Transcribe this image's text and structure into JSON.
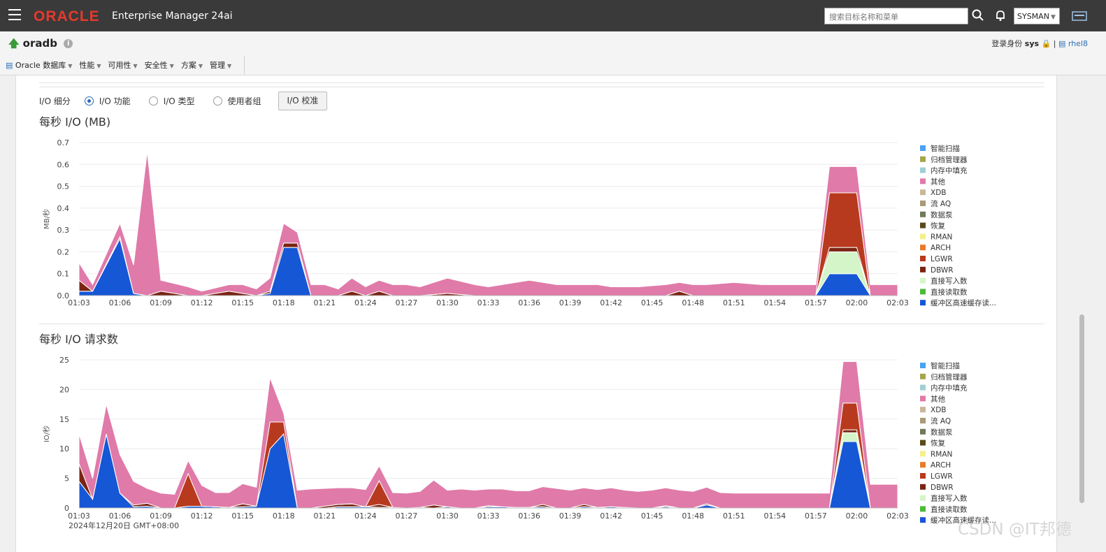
{
  "header": {
    "brand": "ORACLE",
    "product": "Enterprise Manager 24ai",
    "search_placeholder": "搜索目标名称和菜单",
    "user": "SYSMAN"
  },
  "target_bar": {
    "target_name": "oradb",
    "login_label": "登录身份",
    "login_user": "sys",
    "host": "rhel8"
  },
  "menu": [
    "Oracle 数据库",
    "性能",
    "可用性",
    "安全性",
    "方案",
    "管理"
  ],
  "io_breakdown": {
    "label": "I/O 细分",
    "options": [
      "I/O 功能",
      "I/O 类型",
      "使用者组"
    ],
    "selected": "I/O 功能",
    "calibrate_button": "I/O 校准"
  },
  "legend_colors": [
    "#4aa3f0",
    "#a7a54a",
    "#9fcfd6",
    "#e07aa9",
    "#c9b79b",
    "#a89a7a",
    "#6f7a5a",
    "#5a4a1a",
    "#f5f08a",
    "#ea7a2a",
    "#b83a1e",
    "#7a2412",
    "#d4f5c7",
    "#4cbb3a",
    "#1657d6"
  ],
  "watermark": "CSDN @IT邦德",
  "charts": [
    {
      "title": "每秒 I/O (MB)",
      "ylabel": "MB/秒",
      "ylim": [
        0,
        0.7
      ],
      "yticks": [
        "0.0",
        "0.1",
        "0.2",
        "0.3",
        "0.4",
        "0.5",
        "0.6",
        "0.7"
      ],
      "xticks": [
        "01:03",
        "01:06",
        "01:09",
        "01:12",
        "01:15",
        "01:18",
        "01:21",
        "01:24",
        "01:27",
        "01:30",
        "01:33",
        "01:36",
        "01:39",
        "01:42",
        "01:45",
        "01:48",
        "01:51",
        "01:54",
        "01:57",
        "02:00",
        "02:03"
      ],
      "date_label": "",
      "legend": [
        "智能扫描",
        "归档管理器",
        "内存中填充",
        "其他",
        "XDB",
        "流 AQ",
        "数据泵",
        "恢复",
        "RMAN",
        "ARCH",
        "LGWR",
        "DBWR",
        "直接写入数",
        "直接读取数",
        "缓冲区高速缓存读..."
      ]
    },
    {
      "title": "每秒 I/O 请求数",
      "ylabel": "IO/秒",
      "ylim": [
        0,
        25
      ],
      "yticks": [
        "0",
        "5",
        "10",
        "15",
        "20",
        "25"
      ],
      "xticks": [
        "01:03",
        "01:06",
        "01:09",
        "01:12",
        "01:15",
        "01:18",
        "01:21",
        "01:24",
        "01:27",
        "01:30",
        "01:33",
        "01:36",
        "01:39",
        "01:42",
        "01:45",
        "01:48",
        "01:51",
        "01:54",
        "01:57",
        "02:00",
        "02:03"
      ],
      "date_label": "2024年12月20日 GMT+08:00",
      "legend": [
        "智能扫描",
        "归档管理器",
        "内存中填充",
        "其他",
        "XDB",
        "流 AQ",
        "数据泵",
        "恢复",
        "RMAN",
        "ARCH",
        "LGWR",
        "DBWR",
        "直接写入数",
        "直接读取数",
        "缓冲区高速缓存读..."
      ]
    }
  ],
  "chart_data": [
    {
      "type": "area",
      "title": "每秒 I/O (MB)",
      "ylabel": "MB/秒",
      "x_range": [
        "01:03",
        "02:03"
      ],
      "ylim": [
        0,
        0.7
      ],
      "x": [
        63,
        64,
        66,
        67,
        68,
        69,
        71,
        72,
        74,
        75,
        76,
        77,
        78,
        79,
        80,
        81,
        82,
        83,
        84,
        85,
        86,
        87,
        88,
        90,
        92,
        93,
        96,
        98,
        99,
        101,
        102,
        104,
        106,
        107,
        108,
        109,
        111,
        113,
        115,
        117,
        118,
        120,
        121,
        122,
        123
      ],
      "series": [
        {
          "name": "缓冲区高速缓存读...",
          "values": [
            0.02,
            0.02,
            0.26,
            0.01,
            0,
            0,
            0,
            0,
            0,
            0,
            0,
            0.01,
            0.22,
            0.22,
            0,
            0,
            0,
            0,
            0,
            0,
            0,
            0,
            0,
            0,
            0,
            0,
            0,
            0,
            0,
            0,
            0,
            0,
            0,
            0,
            0,
            0,
            0,
            0,
            0,
            0,
            0.1,
            0.1,
            0,
            0,
            0
          ]
        },
        {
          "name": "直接写入数",
          "values": [
            0,
            0,
            0,
            0,
            0,
            0,
            0,
            0,
            0,
            0,
            0,
            0,
            0,
            0,
            0,
            0,
            0,
            0,
            0,
            0,
            0,
            0,
            0,
            0,
            0,
            0,
            0,
            0,
            0,
            0,
            0,
            0,
            0,
            0,
            0,
            0,
            0,
            0,
            0,
            0,
            0.1,
            0.1,
            0,
            0,
            0
          ]
        },
        {
          "name": "DBWR",
          "values": [
            0.05,
            0,
            0.01,
            0,
            0,
            0.02,
            0,
            0,
            0.02,
            0.01,
            0,
            0.01,
            0.02,
            0.02,
            0,
            0,
            0,
            0.02,
            0,
            0.02,
            0,
            0,
            0,
            0.01,
            0,
            0,
            0,
            0,
            0,
            0,
            0,
            0,
            0,
            0.02,
            0,
            0,
            0,
            0,
            0,
            0,
            0.02,
            0.02,
            0,
            0,
            0
          ]
        },
        {
          "name": "LGWR",
          "values": [
            0,
            0,
            0,
            0,
            0,
            0,
            0,
            0,
            0,
            0,
            0,
            0,
            0,
            0,
            0,
            0,
            0,
            0,
            0,
            0,
            0,
            0,
            0,
            0,
            0,
            0,
            0,
            0,
            0,
            0,
            0,
            0,
            0,
            0,
            0,
            0,
            0,
            0,
            0,
            0,
            0.25,
            0.25,
            0,
            0,
            0
          ]
        },
        {
          "name": "其他",
          "values": [
            0.08,
            0.03,
            0.06,
            0.13,
            0.66,
            0.05,
            0.04,
            0.02,
            0.03,
            0.04,
            0.03,
            0.06,
            0.09,
            0.05,
            0.05,
            0.05,
            0.03,
            0.06,
            0.04,
            0.05,
            0.05,
            0.05,
            0.04,
            0.07,
            0.05,
            0.04,
            0.07,
            0.05,
            0.05,
            0.05,
            0.04,
            0.04,
            0.05,
            0.04,
            0.05,
            0.05,
            0.06,
            0.05,
            0.05,
            0.05,
            0.12,
            0.12,
            0.05,
            0.05,
            0.05
          ]
        }
      ]
    },
    {
      "type": "area",
      "title": "每秒 I/O 请求数",
      "ylabel": "IO/秒",
      "x_range": [
        "01:03",
        "02:03"
      ],
      "ylim": [
        0,
        25
      ],
      "x": [
        63,
        64,
        65,
        66,
        67,
        68,
        69,
        70,
        71,
        72,
        73,
        74,
        75,
        76,
        77,
        78,
        79,
        80,
        81,
        82,
        83,
        84,
        85,
        86,
        87,
        88,
        89,
        90,
        91,
        92,
        93,
        94,
        95,
        96,
        97,
        98,
        99,
        100,
        101,
        102,
        103,
        104,
        105,
        106,
        107,
        108,
        109,
        110,
        111,
        112,
        113,
        114,
        115,
        116,
        117,
        118,
        119,
        120,
        121,
        122,
        123
      ],
      "series": [
        {
          "name": "缓冲区高速缓存读...",
          "values": [
            4.5,
            1.5,
            12.5,
            2.5,
            0.2,
            0.3,
            0,
            0,
            0.3,
            0.3,
            0.2,
            0.1,
            0.2,
            0.3,
            10,
            12.5,
            0,
            0,
            0,
            0.2,
            0.2,
            0.2,
            0.1,
            0.1,
            0,
            0.1,
            0,
            0.2,
            0,
            0,
            0.2,
            0.2,
            0.1,
            0.1,
            0.2,
            0,
            0,
            0.2,
            0.1,
            0.2,
            0.1,
            0,
            0,
            0.2,
            0,
            0,
            0.5,
            0,
            0,
            0,
            0,
            0,
            0,
            0,
            0,
            0,
            11.2,
            11.2,
            0,
            0,
            0
          ]
        },
        {
          "name": "直接写入数",
          "values": [
            0,
            0,
            0,
            0,
            0,
            0,
            0,
            0,
            0,
            0,
            0,
            0,
            0,
            0,
            0,
            0,
            0,
            0,
            0,
            0,
            0,
            0,
            0,
            0,
            0,
            0,
            0,
            0,
            0,
            0,
            0,
            0,
            0,
            0,
            0,
            0,
            0,
            0,
            0,
            0,
            0,
            0,
            0,
            0,
            0,
            0,
            0,
            0,
            0,
            0,
            0,
            0,
            0,
            0,
            0,
            0,
            1.5,
            1.5,
            0,
            0,
            0
          ]
        },
        {
          "name": "DBWR",
          "values": [
            3,
            0,
            0,
            0,
            0.3,
            0.5,
            0,
            0,
            0,
            0,
            0,
            0,
            0.5,
            0,
            0,
            0,
            0,
            0,
            0.3,
            0.4,
            0.5,
            0,
            0.5,
            0,
            0,
            0,
            0.5,
            0,
            0,
            0,
            0.2,
            0,
            0,
            0,
            0.4,
            0,
            0,
            0.4,
            0,
            0,
            0,
            0,
            0,
            0.2,
            0,
            0,
            0.2,
            0,
            0,
            0,
            0,
            0,
            0,
            0,
            0,
            0,
            0.5,
            0.5,
            0,
            0,
            0
          ]
        },
        {
          "name": "LGWR",
          "values": [
            0,
            0,
            0,
            0,
            0,
            0,
            0,
            0,
            5.5,
            0,
            0,
            0,
            0,
            0,
            4.5,
            2,
            0,
            0,
            0,
            0,
            0,
            0,
            4,
            0,
            0,
            0,
            0,
            0,
            0,
            0,
            0,
            0,
            0,
            0,
            0,
            0,
            0,
            0,
            0,
            0,
            0,
            0,
            0,
            0,
            0,
            0,
            0,
            0,
            0,
            0,
            0,
            0,
            0,
            0,
            0,
            0,
            4.5,
            4.5,
            0,
            0,
            0
          ]
        },
        {
          "name": "其他",
          "values": [
            5,
            3.5,
            5,
            6.5,
            4,
            2.5,
            2.5,
            2.3,
            2.2,
            3.5,
            2.4,
            2.5,
            3.4,
            3.2,
            7.5,
            1.5,
            3,
            3.2,
            3,
            2.8,
            2.7,
            2.9,
            2.5,
            2.5,
            2.5,
            2.7,
            4.2,
            2.8,
            3.2,
            3,
            2.8,
            3,
            2.8,
            2.8,
            3,
            3.3,
            3,
            2.8,
            3,
            3.2,
            2.9,
            2.8,
            3,
            3,
            3,
            2.8,
            2.8,
            2.6,
            2.5,
            2.5,
            2.5,
            2.5,
            2.5,
            2.5,
            2.5,
            2.5,
            7,
            7,
            4,
            4,
            4
          ]
        }
      ]
    }
  ]
}
